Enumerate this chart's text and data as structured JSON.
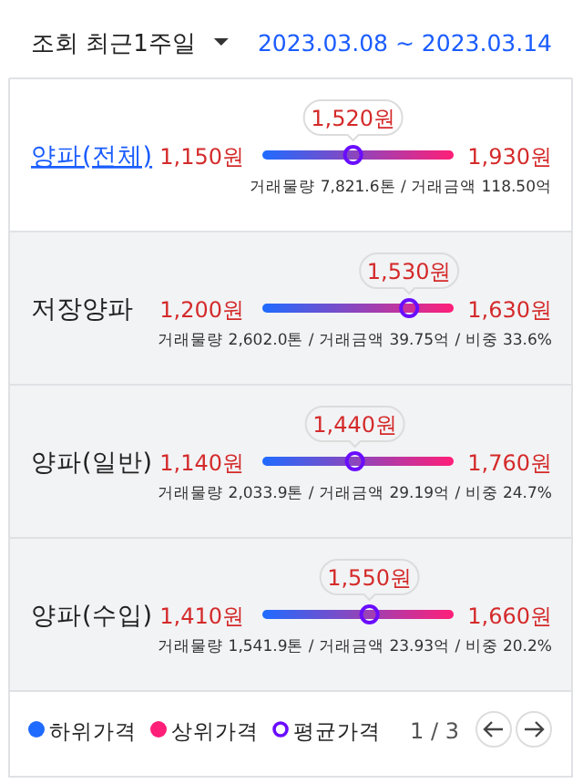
{
  "chart_data": {
    "type": "other",
    "title": "조회 최근1주일",
    "subtitle": "2023.03.08 ~ 2023.03.14",
    "categories": [
      "양파(전체)",
      "저장양파",
      "양파(일반)",
      "양파(수입)"
    ],
    "series": [
      {
        "name": "하위가격",
        "color": "#1f6bff",
        "values": [
          1150,
          1200,
          1140,
          1410
        ],
        "value_labels": [
          "1,150원",
          "1,200원",
          "1,140원",
          "1,410원"
        ]
      },
      {
        "name": "상위가격",
        "color": "#ff1f78",
        "values": [
          1930,
          1630,
          1760,
          1660
        ],
        "value_labels": [
          "1,930원",
          "1,630원",
          "1,760원",
          "1,660원"
        ]
      },
      {
        "name": "평균가격",
        "color": "#6a0dff",
        "type": "scatter",
        "values": [
          1520,
          1530,
          1440,
          1550
        ],
        "value_labels": [
          "1,520원",
          "1,530원",
          "1,440원",
          "1,550원"
        ]
      }
    ],
    "legend": "bottom",
    "annotations": [
      "거래물량 7,821.6톤 / 거래금액 118.50억",
      "거래물량 2,602.0톤 / 거래금액 39.75억 / 비중 33.6%",
      "거래물량 2,033.9톤 / 거래금액 29.19억 / 비중 24.7%",
      "거래물량 1,541.9톤 / 거래금액 23.93억 / 비중 20.2%",
      "1 / 3"
    ]
  }
}
